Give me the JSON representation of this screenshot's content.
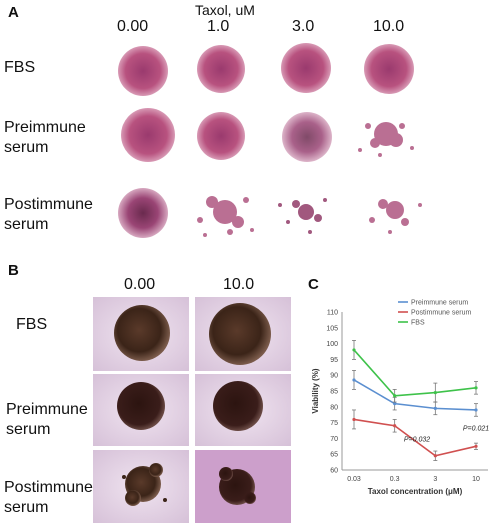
{
  "panel_a": {
    "letter": "A",
    "header": "Taxol, uM",
    "columns": [
      "0.00",
      "1.0",
      "3.0",
      "10.0"
    ],
    "rows": [
      {
        "line1": "FBS",
        "line2": ""
      },
      {
        "line1": "Preimmune",
        "line2": "serum"
      },
      {
        "line1": "Postimmune",
        "line2": "serum"
      }
    ]
  },
  "panel_b": {
    "letter": "B",
    "columns": [
      "0.00",
      "10.0"
    ],
    "rows": [
      {
        "line1": "FBS",
        "line2": ""
      },
      {
        "line1": "Preimmune",
        "line2": "serum"
      },
      {
        "line1": "Postimmune",
        "line2": "serum"
      }
    ]
  },
  "panel_c": {
    "letter": "C",
    "annotations": [
      {
        "label": "P=0.032",
        "near": "0.3-3"
      },
      {
        "label": "P=0.021",
        "near": "10"
      }
    ]
  },
  "chart_data": {
    "type": "line",
    "categories": [
      "0.03",
      "0.3",
      "3",
      "10"
    ],
    "xlabel": "Taxol concentration (μM)",
    "ylabel": "Viability (%)",
    "ylim": [
      60,
      110
    ],
    "yticks": [
      "60",
      "65",
      "70",
      "75",
      "80",
      "85",
      "90",
      "95",
      "100",
      "105",
      "110"
    ],
    "legend_position": "top-right",
    "grid": false,
    "series": [
      {
        "name": "Preimmune serum",
        "color": "#5b8fd0",
        "values": [
          88.5,
          81,
          79.5,
          79
        ],
        "errors": [
          3,
          2,
          2,
          2
        ]
      },
      {
        "name": "Postimmune serum",
        "color": "#d05050",
        "values": [
          76,
          74,
          64.5,
          67.5
        ],
        "errors": [
          3,
          2,
          1.5,
          1
        ]
      },
      {
        "name": "FBS",
        "color": "#3ec24a",
        "values": [
          98,
          83.5,
          84.5,
          86
        ],
        "errors": [
          3,
          2,
          3,
          2
        ]
      }
    ]
  }
}
